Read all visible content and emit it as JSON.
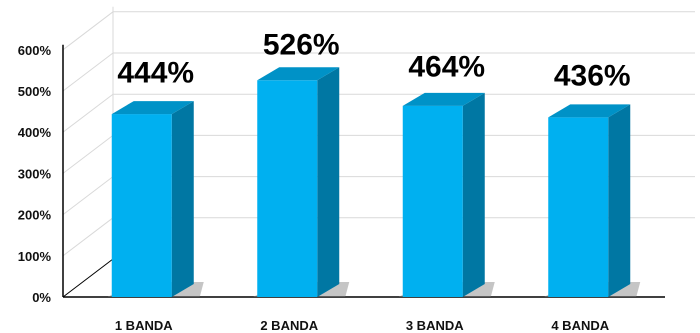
{
  "chart_data": {
    "type": "bar",
    "categories": [
      "1 BANDA",
      "2 BANDA",
      "3 BANDA",
      "4 BANDA"
    ],
    "values": [
      444,
      526,
      464,
      436
    ],
    "data_labels": [
      "444%",
      "526%",
      "464%",
      "436%"
    ],
    "y_ticks": [
      "0%",
      "100%",
      "200%",
      "300%",
      "400%",
      "500%",
      "600%"
    ],
    "ylim": [
      0,
      600
    ],
    "grid": true,
    "style": "3d-column",
    "colors": {
      "bar_front": "#00b0f0",
      "bar_side": "#0077a3",
      "bar_top": "#0092c7",
      "grid": "#d9d9d9",
      "shadow": "#7f7f7f"
    }
  }
}
